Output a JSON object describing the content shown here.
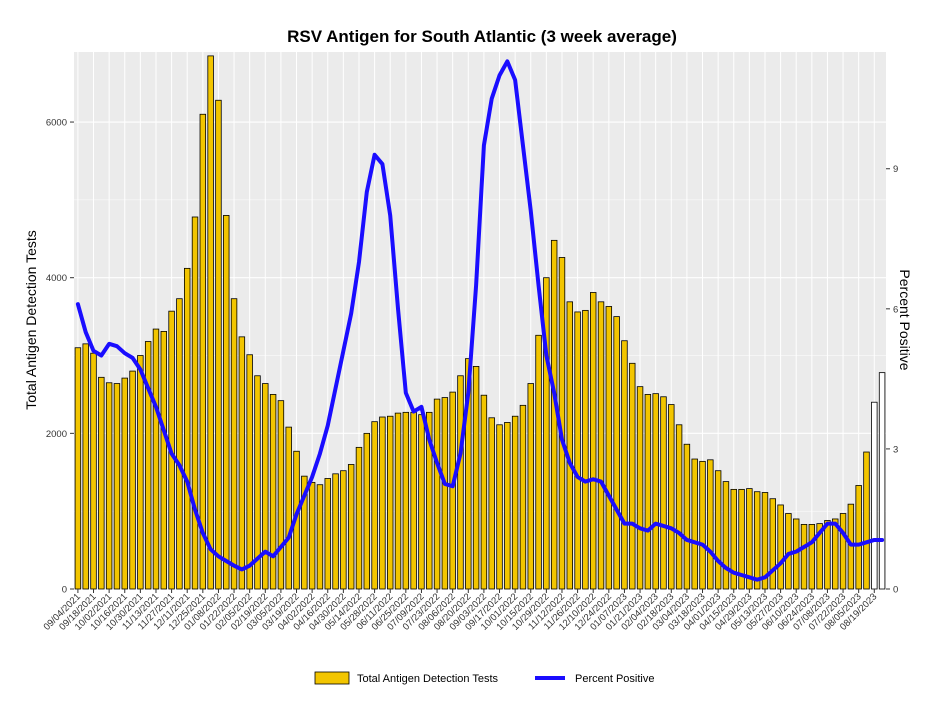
{
  "chart_data": {
    "type": "bar",
    "title": "RSV Antigen for South Atlantic (3 week average)",
    "ylabel": "Total Antigen Detection Tests",
    "y2label": "Percent Positive",
    "ylim": [
      0,
      6900
    ],
    "y2lim": [
      0,
      11.5
    ],
    "yticks": [
      0,
      2000,
      4000,
      6000
    ],
    "y2ticks": [
      0,
      3,
      6,
      9
    ],
    "grid": true,
    "legend_position": "bottom",
    "x_tick_labels": [
      "09/04/2021",
      "09/18/2021",
      "10/02/2021",
      "10/16/2021",
      "10/30/2021",
      "11/13/2021",
      "11/27/2021",
      "12/11/2021",
      "12/25/2021",
      "01/08/2022",
      "01/22/2022",
      "02/05/2022",
      "02/19/2022",
      "03/05/2022",
      "03/19/2022",
      "04/02/2022",
      "04/16/2022",
      "04/30/2022",
      "05/14/2022",
      "05/28/2022",
      "06/11/2022",
      "06/25/2022",
      "07/09/2022",
      "07/23/2022",
      "08/06/2022",
      "08/20/2022",
      "09/03/2022",
      "09/17/2022",
      "10/01/2022",
      "10/15/2022",
      "10/29/2022",
      "11/12/2022",
      "11/26/2022",
      "12/10/2022",
      "12/24/2022",
      "01/07/2023",
      "01/21/2023",
      "02/04/2023",
      "02/18/2023",
      "03/04/2023",
      "03/18/2023",
      "04/01/2023",
      "04/15/2023",
      "04/29/2023",
      "05/13/2023",
      "05/27/2023",
      "06/10/2023",
      "06/24/2023",
      "07/08/2023",
      "07/22/2023",
      "08/05/2023",
      "08/19/2023"
    ],
    "categories": [
      "09/04/2021",
      "09/11/2021",
      "09/18/2021",
      "09/25/2021",
      "10/02/2021",
      "10/09/2021",
      "10/16/2021",
      "10/23/2021",
      "10/30/2021",
      "11/06/2021",
      "11/13/2021",
      "11/20/2021",
      "11/27/2021",
      "12/04/2021",
      "12/11/2021",
      "12/18/2021",
      "12/25/2021",
      "01/01/2022",
      "01/08/2022",
      "01/15/2022",
      "01/22/2022",
      "01/29/2022",
      "02/05/2022",
      "02/12/2022",
      "02/19/2022",
      "02/26/2022",
      "03/05/2022",
      "03/12/2022",
      "03/19/2022",
      "03/26/2022",
      "04/02/2022",
      "04/09/2022",
      "04/16/2022",
      "04/23/2022",
      "04/30/2022",
      "05/07/2022",
      "05/14/2022",
      "05/21/2022",
      "05/28/2022",
      "06/04/2022",
      "06/11/2022",
      "06/18/2022",
      "06/25/2022",
      "07/02/2022",
      "07/09/2022",
      "07/16/2022",
      "07/23/2022",
      "07/30/2022",
      "08/06/2022",
      "08/13/2022",
      "08/20/2022",
      "08/27/2022",
      "09/03/2022",
      "09/10/2022",
      "09/17/2022",
      "09/24/2022",
      "10/01/2022",
      "10/08/2022",
      "10/15/2022",
      "10/22/2022",
      "10/29/2022",
      "11/05/2022",
      "11/12/2022",
      "11/19/2022",
      "11/26/2022",
      "12/03/2022",
      "12/10/2022",
      "12/17/2022",
      "12/24/2022",
      "12/31/2022",
      "01/07/2023",
      "01/14/2023",
      "01/21/2023",
      "01/28/2023",
      "02/04/2023",
      "02/11/2023",
      "02/18/2023",
      "02/25/2023",
      "03/04/2023",
      "03/11/2023",
      "03/18/2023",
      "03/25/2023",
      "04/01/2023",
      "04/08/2023",
      "04/15/2023",
      "04/22/2023",
      "04/29/2023",
      "05/06/2023",
      "05/13/2023",
      "05/20/2023",
      "05/27/2023",
      "06/03/2023",
      "06/10/2023",
      "06/17/2023",
      "06/24/2023",
      "07/01/2023",
      "07/08/2023",
      "07/15/2023",
      "07/22/2023",
      "07/29/2023",
      "08/05/2023",
      "08/12/2023",
      "08/19/2023",
      "08/26/2023"
    ],
    "series": [
      {
        "name": "Total Antigen Detection Tests",
        "kind": "bar",
        "axis": "left",
        "color": "#f2c500",
        "values": [
          3100,
          3150,
          3030,
          2720,
          2650,
          2640,
          2710,
          2800,
          3000,
          3180,
          3340,
          3310,
          3570,
          3730,
          4120,
          4780,
          6100,
          6850,
          6280,
          4800,
          3730,
          3240,
          3010,
          2740,
          2640,
          2500,
          2420,
          2080,
          1770,
          1450,
          1370,
          1340,
          1420,
          1480,
          1520,
          1600,
          1820,
          2000,
          2150,
          2210,
          2220,
          2260,
          2270,
          2270,
          2240,
          2270,
          2440,
          2460,
          2530,
          2740,
          2960,
          2860,
          2490,
          2200,
          2110,
          2140,
          2220,
          2360,
          2640,
          3260,
          4000,
          4480,
          4260,
          3690,
          3560,
          3580,
          3810,
          3690,
          3630,
          3500,
          3190,
          2900,
          2600,
          2500,
          2510,
          2470,
          2370,
          2110,
          1860,
          1670,
          1640,
          1660,
          1520,
          1380,
          1280,
          1280,
          1290,
          1250,
          1240,
          1160,
          1080,
          970,
          900,
          830,
          830,
          840,
          880,
          900,
          970,
          1090,
          1330,
          1760,
          2400,
          2780
        ]
      },
      {
        "name": "Percent Positive",
        "kind": "line",
        "axis": "right",
        "color": "#1a0dff",
        "values": [
          6.1,
          5.5,
          5.1,
          5.0,
          5.25,
          5.2,
          5.05,
          4.95,
          4.7,
          4.3,
          3.9,
          3.4,
          2.9,
          2.65,
          2.3,
          1.7,
          1.2,
          0.85,
          0.7,
          0.6,
          0.5,
          0.42,
          0.5,
          0.65,
          0.8,
          0.7,
          0.9,
          1.1,
          1.6,
          2.0,
          2.4,
          2.9,
          3.5,
          4.3,
          5.1,
          5.9,
          7.0,
          8.5,
          9.3,
          9.1,
          8.0,
          6.0,
          4.2,
          3.8,
          3.9,
          3.2,
          2.7,
          2.25,
          2.2,
          2.9,
          4.2,
          6.5,
          9.5,
          10.5,
          11.0,
          11.3,
          10.9,
          9.5,
          8.1,
          6.5,
          5.0,
          4.2,
          3.2,
          2.7,
          2.4,
          2.3,
          2.35,
          2.3,
          2.0,
          1.7,
          1.4,
          1.4,
          1.3,
          1.25,
          1.4,
          1.35,
          1.3,
          1.2,
          1.05,
          1.0,
          0.95,
          0.8,
          0.6,
          0.45,
          0.35,
          0.3,
          0.25,
          0.2,
          0.25,
          0.4,
          0.55,
          0.75,
          0.8,
          0.9,
          1.0,
          1.2,
          1.4,
          1.4,
          1.2,
          0.95,
          0.95,
          1.0,
          1.05,
          1.05
        ]
      }
    ]
  }
}
